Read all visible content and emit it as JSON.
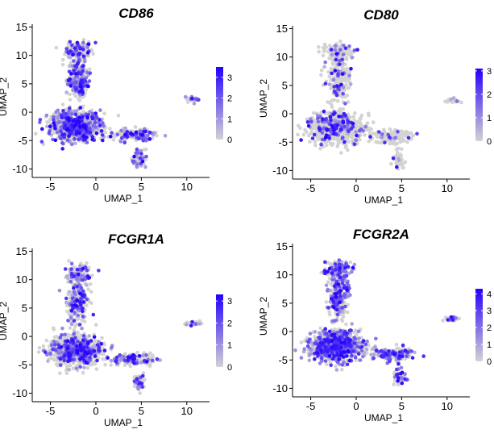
{
  "chart_data": [
    {
      "type": "scatter",
      "title": "CD86",
      "xlabel": "UMAP_1",
      "ylabel": "UMAP_2",
      "xlim": [
        -7,
        12.5
      ],
      "ylim": [
        -11.5,
        15.5
      ],
      "xticks": [
        "-5",
        "0",
        "5",
        "10"
      ],
      "yticks": [
        "15",
        "10",
        "5",
        "0",
        "-5",
        "-10"
      ],
      "colorbar": {
        "min": 0,
        "max": 3.5,
        "ticks": [
          "3",
          "2",
          "1",
          "0"
        ],
        "low_color": "#d3d3d3",
        "high_color": "#2400ff"
      },
      "expression_level": 0.45,
      "clusters": [
        {
          "name": "main",
          "cx": -2.2,
          "cy": -2.5,
          "sx": 2.4,
          "sy": 2.2,
          "n": 820
        },
        {
          "name": "stalk",
          "cx": -2.0,
          "cy": 6.0,
          "sx": 1.0,
          "sy": 3.2,
          "n": 230
        },
        {
          "name": "top",
          "cx": -2.0,
          "cy": 11.0,
          "sx": 1.4,
          "sy": 1.2,
          "n": 120
        },
        {
          "name": "right_arm",
          "cx": 4.0,
          "cy": -4.0,
          "sx": 2.0,
          "sy": 0.9,
          "n": 160
        },
        {
          "name": "tail",
          "cx": 4.7,
          "cy": -8.0,
          "sx": 0.5,
          "sy": 1.3,
          "n": 50
        },
        {
          "name": "island",
          "cx": 10.6,
          "cy": 2.3,
          "sx": 0.7,
          "sy": 0.35,
          "n": 30
        }
      ]
    },
    {
      "type": "scatter",
      "title": "CD80",
      "xlabel": "UMAP_1",
      "ylabel": "UMAP_2",
      "xlim": [
        -7,
        12.5
      ],
      "ylim": [
        -11.5,
        15.5
      ],
      "xticks": [
        "-5",
        "0",
        "5",
        "10"
      ],
      "yticks": [
        "15",
        "10",
        "5",
        "0",
        "-5",
        "-10"
      ],
      "colorbar": {
        "min": 0,
        "max": 3.1,
        "ticks": [
          "3",
          "2",
          "1",
          "0"
        ],
        "low_color": "#d3d3d3",
        "high_color": "#2400ff"
      },
      "expression_level": 0.12,
      "clusters": [
        {
          "name": "main",
          "cx": -2.2,
          "cy": -2.5,
          "sx": 2.4,
          "sy": 2.2,
          "n": 820
        },
        {
          "name": "stalk",
          "cx": -2.0,
          "cy": 6.0,
          "sx": 1.0,
          "sy": 3.2,
          "n": 230
        },
        {
          "name": "top",
          "cx": -2.0,
          "cy": 11.0,
          "sx": 1.4,
          "sy": 1.2,
          "n": 120
        },
        {
          "name": "right_arm",
          "cx": 4.0,
          "cy": -4.0,
          "sx": 2.0,
          "sy": 0.9,
          "n": 160
        },
        {
          "name": "tail",
          "cx": 4.7,
          "cy": -8.0,
          "sx": 0.5,
          "sy": 1.3,
          "n": 50
        },
        {
          "name": "island",
          "cx": 10.6,
          "cy": 2.3,
          "sx": 0.7,
          "sy": 0.35,
          "n": 30
        }
      ]
    },
    {
      "type": "scatter",
      "title": "FCGR1A",
      "xlabel": "UMAP_1",
      "ylabel": "UMAP_2",
      "xlim": [
        -7,
        12.5
      ],
      "ylim": [
        -11.5,
        15.5
      ],
      "xticks": [
        "-5",
        "0",
        "5",
        "10"
      ],
      "yticks": [
        "15",
        "10",
        "5",
        "0",
        "-5",
        "-10"
      ],
      "colorbar": {
        "min": 0,
        "max": 3.3,
        "ticks": [
          "3",
          "2",
          "1",
          "0"
        ],
        "low_color": "#d3d3d3",
        "high_color": "#2400ff"
      },
      "expression_level": 0.35,
      "clusters": [
        {
          "name": "main",
          "cx": -2.2,
          "cy": -2.5,
          "sx": 2.4,
          "sy": 2.2,
          "n": 820
        },
        {
          "name": "stalk",
          "cx": -2.0,
          "cy": 6.0,
          "sx": 1.0,
          "sy": 3.2,
          "n": 230
        },
        {
          "name": "top",
          "cx": -2.0,
          "cy": 11.0,
          "sx": 1.4,
          "sy": 1.2,
          "n": 120
        },
        {
          "name": "right_arm",
          "cx": 4.0,
          "cy": -4.0,
          "sx": 2.0,
          "sy": 0.9,
          "n": 160
        },
        {
          "name": "tail",
          "cx": 4.7,
          "cy": -8.0,
          "sx": 0.5,
          "sy": 1.3,
          "n": 50
        },
        {
          "name": "island",
          "cx": 10.6,
          "cy": 2.3,
          "sx": 0.7,
          "sy": 0.35,
          "n": 30
        }
      ]
    },
    {
      "type": "scatter",
      "title": "FCGR2A",
      "xlabel": "UMAP_1",
      "ylabel": "UMAP_2",
      "xlim": [
        -7,
        12.5
      ],
      "ylim": [
        -11.5,
        15.5
      ],
      "xticks": [
        "-5",
        "0",
        "5",
        "10"
      ],
      "yticks": [
        "15",
        "10",
        "5",
        "0",
        "-5",
        "-10"
      ],
      "colorbar": {
        "min": 0,
        "max": 4.3,
        "ticks": [
          "4",
          "3",
          "2",
          "1",
          "0"
        ],
        "low_color": "#d3d3d3",
        "high_color": "#2400ff"
      },
      "expression_level": 0.5,
      "clusters": [
        {
          "name": "main",
          "cx": -2.2,
          "cy": -2.5,
          "sx": 2.4,
          "sy": 2.2,
          "n": 820
        },
        {
          "name": "stalk",
          "cx": -2.0,
          "cy": 6.0,
          "sx": 1.0,
          "sy": 3.2,
          "n": 230
        },
        {
          "name": "top",
          "cx": -2.0,
          "cy": 11.0,
          "sx": 1.4,
          "sy": 1.2,
          "n": 120
        },
        {
          "name": "right_arm",
          "cx": 4.0,
          "cy": -4.0,
          "sx": 2.0,
          "sy": 0.9,
          "n": 160
        },
        {
          "name": "tail",
          "cx": 4.7,
          "cy": -8.0,
          "sx": 0.5,
          "sy": 1.3,
          "n": 50
        },
        {
          "name": "island",
          "cx": 10.6,
          "cy": 2.3,
          "sx": 0.7,
          "sy": 0.35,
          "n": 30
        }
      ]
    }
  ]
}
